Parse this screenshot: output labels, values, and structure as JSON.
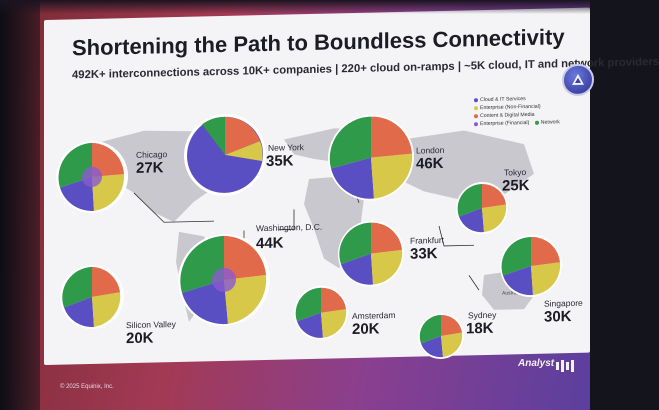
{
  "slide": {
    "title": "Shortening the Path to Boundless Connectivity",
    "subtitle": "492K+ interconnections across 10K+ companies | 220+ cloud on-ramps | ~5K cloud, IT and network providers"
  },
  "legend": [
    {
      "label": "Cloud & IT Services",
      "color": "#5a4fc2"
    },
    {
      "label": "Enterprise (Non-Financial)",
      "color": "#d8c84a"
    },
    {
      "label": "Content & Digital Media",
      "color": "#e06a4a"
    },
    {
      "label": "Enterprise (Financial)",
      "color": "#8a5ad0"
    },
    {
      "label": "Network",
      "color": "#2e9a4a"
    }
  ],
  "locations": [
    {
      "city": "Chicago",
      "count": "27K"
    },
    {
      "city": "New York",
      "count": "35K"
    },
    {
      "city": "Washington, D.C.",
      "count": "44K"
    },
    {
      "city": "Silicon Valley",
      "count": "20K"
    },
    {
      "city": "London",
      "count": "46K"
    },
    {
      "city": "Frankfurt",
      "count": "33K"
    },
    {
      "city": "Amsterdam",
      "count": "20K"
    },
    {
      "city": "Tokyo",
      "count": "25K"
    },
    {
      "city": "Singapore",
      "count": "30K"
    },
    {
      "city": "Sydney",
      "count": "18K"
    }
  ],
  "map_label": "Australia",
  "footer": "© 2025 Equinix, Inc.",
  "event_logo": "Analyst",
  "brand_logo": "equinix-logo-icon"
}
